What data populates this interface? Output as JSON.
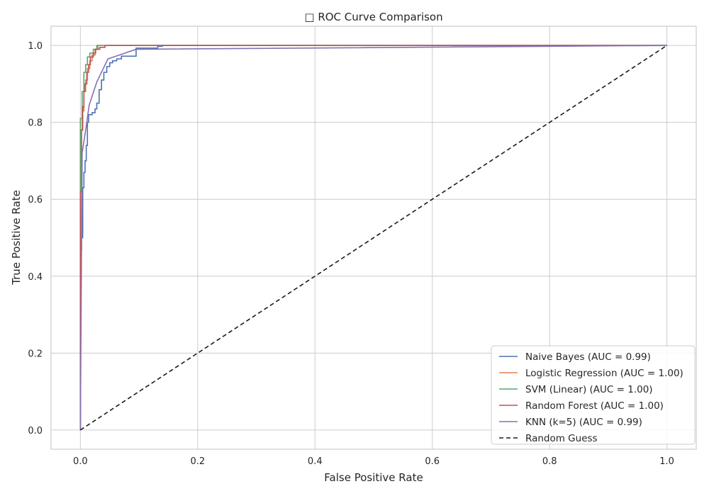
{
  "chart_data": {
    "type": "line",
    "title": "□ ROC Curve Comparison",
    "xlabel": "False Positive Rate",
    "ylabel": "True Positive Rate",
    "xlim": [
      -0.05,
      1.05
    ],
    "ylim": [
      -0.05,
      1.05
    ],
    "xticks": [
      "0.0",
      "0.2",
      "0.4",
      "0.6",
      "0.8",
      "1.0"
    ],
    "yticks": [
      "0.0",
      "0.2",
      "0.4",
      "0.6",
      "0.8",
      "1.0"
    ],
    "grid": true,
    "legend_position": "lower-right",
    "series": [
      {
        "name": "Naive Bayes (AUC = 0.99)",
        "color": "#4c72b0",
        "style": "solid",
        "points": [
          [
            0,
            0
          ],
          [
            0,
            0.47
          ],
          [
            0.002,
            0.47
          ],
          [
            0.002,
            0.5
          ],
          [
            0.004,
            0.5
          ],
          [
            0.004,
            0.63
          ],
          [
            0.006,
            0.63
          ],
          [
            0.006,
            0.67
          ],
          [
            0.008,
            0.67
          ],
          [
            0.008,
            0.7
          ],
          [
            0.01,
            0.7
          ],
          [
            0.01,
            0.74
          ],
          [
            0.012,
            0.74
          ],
          [
            0.012,
            0.8
          ],
          [
            0.014,
            0.8
          ],
          [
            0.014,
            0.82
          ],
          [
            0.02,
            0.82
          ],
          [
            0.02,
            0.825
          ],
          [
            0.025,
            0.825
          ],
          [
            0.025,
            0.835
          ],
          [
            0.028,
            0.835
          ],
          [
            0.028,
            0.85
          ],
          [
            0.032,
            0.85
          ],
          [
            0.032,
            0.885
          ],
          [
            0.036,
            0.885
          ],
          [
            0.036,
            0.91
          ],
          [
            0.04,
            0.91
          ],
          [
            0.04,
            0.93
          ],
          [
            0.045,
            0.93
          ],
          [
            0.045,
            0.945
          ],
          [
            0.05,
            0.945
          ],
          [
            0.05,
            0.955
          ],
          [
            0.055,
            0.955
          ],
          [
            0.055,
            0.96
          ],
          [
            0.062,
            0.96
          ],
          [
            0.062,
            0.965
          ],
          [
            0.07,
            0.965
          ],
          [
            0.07,
            0.972
          ],
          [
            0.095,
            0.972
          ],
          [
            0.095,
            0.993
          ],
          [
            0.132,
            0.993
          ],
          [
            0.132,
            0.998
          ],
          [
            0.14,
            0.998
          ],
          [
            0.14,
            1.0
          ],
          [
            1.0,
            1.0
          ]
        ]
      },
      {
        "name": "Logistic Regression (AUC = 1.00)",
        "color": "#dd8452",
        "style": "solid",
        "points": [
          [
            0,
            0
          ],
          [
            0,
            0.78
          ],
          [
            0.003,
            0.78
          ],
          [
            0.003,
            0.83
          ],
          [
            0.006,
            0.83
          ],
          [
            0.006,
            0.88
          ],
          [
            0.009,
            0.88
          ],
          [
            0.009,
            0.91
          ],
          [
            0.012,
            0.91
          ],
          [
            0.012,
            0.94
          ],
          [
            0.016,
            0.94
          ],
          [
            0.016,
            0.96
          ],
          [
            0.02,
            0.96
          ],
          [
            0.02,
            0.975
          ],
          [
            0.025,
            0.975
          ],
          [
            0.025,
            0.99
          ],
          [
            0.03,
            0.99
          ],
          [
            0.03,
            1.0
          ],
          [
            1.0,
            1.0
          ]
        ]
      },
      {
        "name": "SVM (Linear) (AUC = 1.00)",
        "color": "#55a868",
        "style": "solid",
        "points": [
          [
            0,
            0
          ],
          [
            0,
            0.81
          ],
          [
            0.003,
            0.81
          ],
          [
            0.003,
            0.88
          ],
          [
            0.006,
            0.88
          ],
          [
            0.006,
            0.93
          ],
          [
            0.009,
            0.93
          ],
          [
            0.009,
            0.95
          ],
          [
            0.012,
            0.95
          ],
          [
            0.012,
            0.97
          ],
          [
            0.016,
            0.97
          ],
          [
            0.016,
            0.98
          ],
          [
            0.022,
            0.98
          ],
          [
            0.022,
            0.99
          ],
          [
            0.028,
            0.99
          ],
          [
            0.028,
            1.0
          ],
          [
            1.0,
            1.0
          ]
        ]
      },
      {
        "name": "Random Forest (AUC = 1.00)",
        "color": "#c44e52",
        "style": "solid",
        "points": [
          [
            0,
            0
          ],
          [
            0,
            0.62
          ],
          [
            0.002,
            0.62
          ],
          [
            0.002,
            0.78
          ],
          [
            0.004,
            0.78
          ],
          [
            0.004,
            0.84
          ],
          [
            0.006,
            0.84
          ],
          [
            0.006,
            0.88
          ],
          [
            0.008,
            0.88
          ],
          [
            0.008,
            0.9
          ],
          [
            0.011,
            0.9
          ],
          [
            0.011,
            0.93
          ],
          [
            0.014,
            0.93
          ],
          [
            0.014,
            0.95
          ],
          [
            0.017,
            0.95
          ],
          [
            0.017,
            0.97
          ],
          [
            0.022,
            0.97
          ],
          [
            0.022,
            0.98
          ],
          [
            0.026,
            0.98
          ],
          [
            0.026,
            0.99
          ],
          [
            0.033,
            0.99
          ],
          [
            0.033,
            0.995
          ],
          [
            0.042,
            0.995
          ],
          [
            0.042,
            1.0
          ],
          [
            1.0,
            1.0
          ]
        ]
      },
      {
        "name": "KNN (k=5) (AUC = 0.99)",
        "color": "#8172b3",
        "style": "solid",
        "points": [
          [
            0,
            0
          ],
          [
            0.003,
            0.72
          ],
          [
            0.01,
            0.79
          ],
          [
            0.015,
            0.845
          ],
          [
            0.028,
            0.905
          ],
          [
            0.047,
            0.965
          ],
          [
            0.095,
            0.99
          ],
          [
            1.0,
            1.0
          ]
        ]
      },
      {
        "name": "Random Guess",
        "color": "#1a1a1a",
        "style": "dashed",
        "points": [
          [
            0,
            0
          ],
          [
            1,
            1
          ]
        ]
      }
    ]
  }
}
